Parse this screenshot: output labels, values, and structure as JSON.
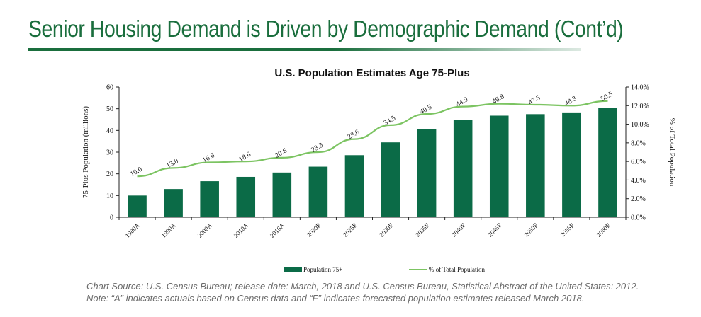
{
  "page": {
    "title": "Senior Housing Demand is Driven by Demographic Demand (Cont’d)",
    "source_note": "Chart Source: U.S. Census Bureau; release date:  March, 2018 and U.S. Census Bureau, Statistical Abstract of the United States: 2012.",
    "footnote": "Note: “A” indicates actuals based on Census data and “F” indicates forecasted population estimates released March 2018."
  },
  "chart_data": {
    "type": "bar",
    "title": "U.S. Population Estimates Age 75-Plus",
    "categories": [
      "1980A",
      "1990A",
      "2000A",
      "2010A",
      "2016A",
      "2020F",
      "2025F",
      "2030F",
      "2035F",
      "2040F",
      "2045F",
      "2050F",
      "2055F",
      "2060F"
    ],
    "series": [
      {
        "name": "Population 75+",
        "kind": "bar",
        "axis": "left",
        "color": "#0b6b47",
        "values": [
          10.0,
          13.0,
          16.6,
          18.6,
          20.6,
          23.3,
          28.6,
          34.5,
          40.5,
          44.9,
          46.8,
          47.5,
          48.3,
          50.5
        ],
        "labels": [
          "10.0",
          "13.0",
          "16.6",
          "18.6",
          "20.6",
          "23.3",
          "28.6",
          "34.5",
          "40.5",
          "44.9",
          "46.8",
          "47.5",
          "48.3",
          "50.5"
        ]
      },
      {
        "name": "% of Total Population",
        "kind": "line",
        "axis": "right",
        "color": "#7cc462",
        "values": [
          4.4,
          5.3,
          5.9,
          6.0,
          6.4,
          7.0,
          8.4,
          9.9,
          11.1,
          11.9,
          12.2,
          12.1,
          12.0,
          12.5
        ]
      }
    ],
    "ylabel": "75-Plus Population (millions)",
    "y2label": "% of Total Population",
    "ylim": [
      0,
      60
    ],
    "y_ticks": [
      "0",
      "10",
      "20",
      "30",
      "40",
      "50",
      "60"
    ],
    "y2lim": [
      0,
      14
    ],
    "y2_ticks": [
      "0.0%",
      "2.0%",
      "4.0%",
      "6.0%",
      "8.0%",
      "10.0%",
      "12.0%",
      "14.0%"
    ],
    "legend_position": "bottom",
    "legend": [
      "Population 75+",
      "% of Total Population"
    ]
  }
}
